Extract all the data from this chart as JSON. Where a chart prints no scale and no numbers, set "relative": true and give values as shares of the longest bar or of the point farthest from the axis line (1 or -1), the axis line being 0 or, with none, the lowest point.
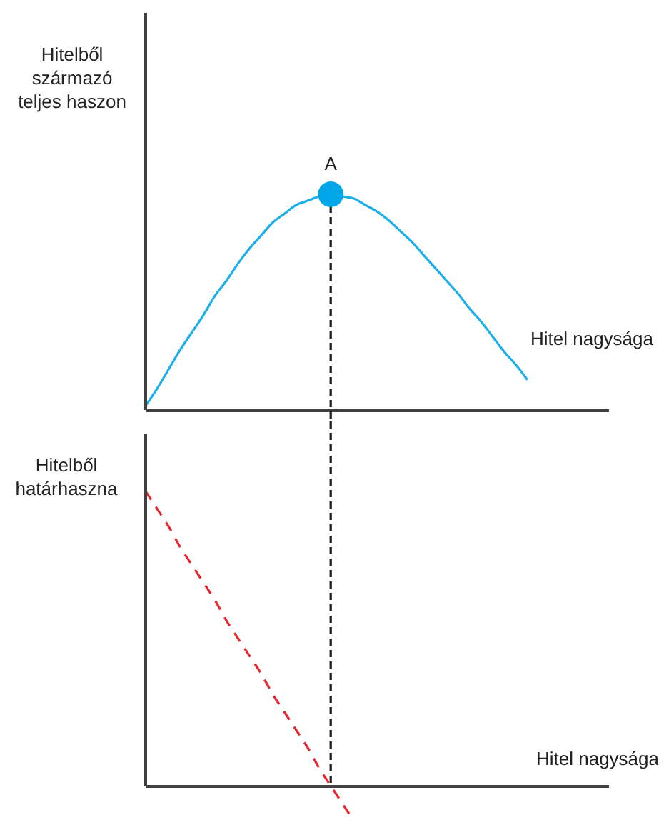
{
  "chart_data": [
    {
      "type": "line",
      "ylabel": "Hitelből\nszármazó\nteljes haszon",
      "xlabel": "Hitel nagysága",
      "relative": true,
      "categories": [
        null,
        null,
        null,
        null,
        null,
        null,
        null,
        null,
        null,
        null,
        null,
        null,
        null,
        null,
        null,
        null,
        null,
        null,
        null,
        null,
        null,
        null,
        null,
        null,
        null,
        null,
        null,
        null,
        null,
        null,
        null,
        null,
        null,
        null,
        null,
        null,
        null,
        null,
        null,
        null,
        null
      ],
      "series": [
        {
          "color": "#1bb0ea",
          "values": [
            0.02,
            0.1,
            0.19,
            0.28,
            0.36,
            0.44,
            0.53,
            0.6,
            0.68,
            0.75,
            0.81,
            0.87,
            0.91,
            0.95,
            0.97,
            0.99,
            1,
            0.99,
            0.98,
            0.95,
            0.92,
            0.88,
            0.83,
            0.78,
            0.72,
            0.66,
            0.6,
            0.54,
            0.47,
            0.41,
            0.34,
            0.27,
            0.21,
            0.14,
            null,
            null,
            null,
            null,
            null,
            null,
            null
          ]
        },
        {
          "name": "A",
          "color": "#00a7e8",
          "marker": "circle",
          "values": [
            null,
            null,
            null,
            null,
            null,
            null,
            null,
            null,
            null,
            null,
            null,
            null,
            null,
            null,
            null,
            null,
            1,
            null,
            null,
            null,
            null,
            null,
            null,
            null,
            null,
            null,
            null,
            null,
            null,
            null,
            null,
            null,
            null,
            null,
            null,
            null,
            null,
            null,
            null,
            null,
            null
          ]
        }
      ]
    },
    {
      "type": "line",
      "ylabel": "Hitelből\nhatárhaszna",
      "xlabel": "Hitel nagysága",
      "relative": true,
      "line_style": "dashed",
      "categories": [
        null,
        null,
        null,
        null,
        null,
        null,
        null,
        null,
        null,
        null,
        null,
        null,
        null,
        null,
        null,
        null,
        null,
        null,
        null,
        null,
        null,
        null,
        null,
        null,
        null,
        null,
        null,
        null,
        null,
        null,
        null,
        null,
        null,
        null,
        null,
        null,
        null,
        null,
        null,
        null,
        null
      ],
      "series": [
        {
          "color": "#e8262d",
          "values": [
            1,
            0.94,
            0.88,
            0.81,
            0.75,
            0.69,
            0.63,
            0.56,
            0.5,
            0.44,
            0.38,
            0.31,
            0.25,
            0.19,
            0.13,
            0.06,
            0,
            -0.06,
            -0.12,
            null,
            null,
            null,
            null,
            null,
            null,
            null,
            null,
            null,
            null,
            null,
            null,
            null,
            null,
            null,
            null,
            null,
            null,
            null,
            null,
            null,
            null
          ]
        }
      ]
    }
  ]
}
